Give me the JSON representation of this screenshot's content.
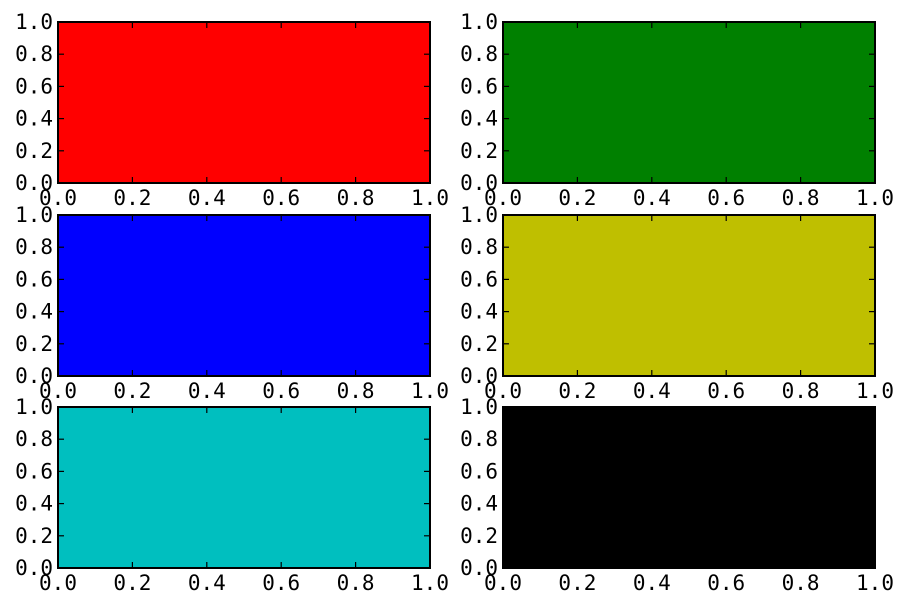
{
  "chart_data": [
    {
      "type": "area",
      "panel": "top-left",
      "fill_color": "#ff0000",
      "xlim": [
        0,
        1
      ],
      "ylim": [
        0,
        1
      ],
      "xticks": [
        "0.0",
        "0.2",
        "0.4",
        "0.6",
        "0.8",
        "1.0"
      ],
      "yticks": [
        "0.0",
        "0.2",
        "0.4",
        "0.6",
        "0.8",
        "1.0"
      ],
      "grid": false
    },
    {
      "type": "area",
      "panel": "top-right",
      "fill_color": "#008000",
      "xlim": [
        0,
        1
      ],
      "ylim": [
        0,
        1
      ],
      "xticks": [
        "0.0",
        "0.2",
        "0.4",
        "0.6",
        "0.8",
        "1.0"
      ],
      "yticks": [
        "0.0",
        "0.2",
        "0.4",
        "0.6",
        "0.8",
        "1.0"
      ],
      "grid": false
    },
    {
      "type": "area",
      "panel": "middle-left",
      "fill_color": "#0000ff",
      "xlim": [
        0,
        1
      ],
      "ylim": [
        0,
        1
      ],
      "xticks": [
        "0.0",
        "0.2",
        "0.4",
        "0.6",
        "0.8",
        "1.0"
      ],
      "yticks": [
        "0.0",
        "0.2",
        "0.4",
        "0.6",
        "0.8",
        "1.0"
      ],
      "grid": false
    },
    {
      "type": "area",
      "panel": "middle-right",
      "fill_color": "#bfbf00",
      "xlim": [
        0,
        1
      ],
      "ylim": [
        0,
        1
      ],
      "xticks": [
        "0.0",
        "0.2",
        "0.4",
        "0.6",
        "0.8",
        "1.0"
      ],
      "yticks": [
        "0.0",
        "0.2",
        "0.4",
        "0.6",
        "0.8",
        "1.0"
      ],
      "grid": false
    },
    {
      "type": "area",
      "panel": "bottom-left",
      "fill_color": "#00bfbf",
      "xlim": [
        0,
        1
      ],
      "ylim": [
        0,
        1
      ],
      "xticks": [
        "0.0",
        "0.2",
        "0.4",
        "0.6",
        "0.8",
        "1.0"
      ],
      "yticks": [
        "0.0",
        "0.2",
        "0.4",
        "0.6",
        "0.8",
        "1.0"
      ],
      "grid": false
    },
    {
      "type": "area",
      "panel": "bottom-right",
      "fill_color": "#000000",
      "xlim": [
        0,
        1
      ],
      "ylim": [
        0,
        1
      ],
      "xticks": [
        "0.0",
        "0.2",
        "0.4",
        "0.6",
        "0.8",
        "1.0"
      ],
      "yticks": [
        "0.0",
        "0.2",
        "0.4",
        "0.6",
        "0.8",
        "1.0"
      ],
      "grid": false
    }
  ]
}
